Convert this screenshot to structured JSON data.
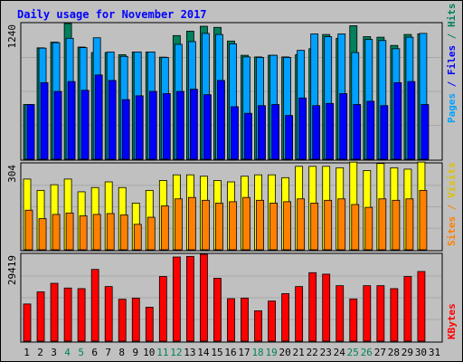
{
  "chart_data": {
    "title": "Daily usage for November 2017",
    "type": "bar",
    "days": [
      "1",
      "2",
      "3",
      "4",
      "5",
      "6",
      "7",
      "8",
      "9",
      "10",
      "11",
      "12",
      "13",
      "14",
      "15",
      "16",
      "17",
      "18",
      "19",
      "20",
      "21",
      "22",
      "23",
      "24",
      "25",
      "26",
      "27",
      "28",
      "29",
      "30",
      "31"
    ],
    "weekend_days": [
      "4",
      "5",
      "11",
      "12",
      "18",
      "19",
      "25",
      "26"
    ],
    "panels": [
      {
        "id": "hits",
        "max_label": "1240",
        "ymax": 1240,
        "series": [
          {
            "name": "Hits",
            "color": "#00805c",
            "values": [
              500,
              1018,
              1070,
              1240,
              1025,
              975,
              975,
              955,
              980,
              980,
              933,
              1130,
              1170,
              1215,
              1205,
              1080,
              950,
              935,
              950,
              935,
              955,
              1010,
              1140,
              1105,
              1220,
              1120,
              1115,
              1040,
              1140,
              1145,
              0
            ]
          },
          {
            "name": "Files",
            "color": "#00a0ff",
            "values": [
              500,
              1015,
              1065,
              1105,
              1020,
              1110,
              980,
              940,
              980,
              980,
              930,
              1050,
              1075,
              1150,
              1140,
              1055,
              935,
              930,
              950,
              930,
              995,
              1145,
              1120,
              1145,
              975,
              1095,
              1085,
              1010,
              1115,
              1150,
              0
            ]
          },
          {
            "name": "Pages",
            "color": "#0000ff",
            "values": [
              500,
              700,
              620,
              710,
              630,
              770,
              720,
              545,
              580,
              620,
              600,
              620,
              640,
              590,
              720,
              480,
              420,
              490,
              500,
              400,
              560,
              490,
              510,
              600,
              500,
              530,
              490,
              700,
              710,
              500,
              0
            ]
          }
        ]
      },
      {
        "id": "visits",
        "max_label": "304",
        "ymax": 304,
        "series": [
          {
            "name": "Visits",
            "color": "#ffff00",
            "values": [
              250,
              210,
              230,
              250,
              205,
              220,
              240,
              220,
              165,
              210,
              245,
              265,
              265,
              260,
              245,
              240,
              260,
              265,
              265,
              255,
              295,
              295,
              295,
              290,
              310,
              280,
              305,
              290,
              285,
              310,
              0
            ]
          },
          {
            "name": "Sites",
            "color": "#ff8000",
            "values": [
              140,
              110,
              125,
              130,
              120,
              125,
              128,
              123,
              90,
              115,
              155,
              180,
              185,
              175,
              165,
              170,
              185,
              175,
              165,
              170,
              180,
              165,
              175,
              180,
              160,
              150,
              180,
              175,
              180,
              210,
              0
            ]
          }
        ]
      },
      {
        "id": "kbytes",
        "max_label": "29419",
        "ymax": 29419,
        "series": [
          {
            "name": "KBytes",
            "color": "#ff0000",
            "values": [
              12600,
              16700,
              19600,
              18000,
              17800,
              24300,
              18500,
              14200,
              14600,
              11500,
              21900,
              28500,
              28700,
              29419,
              21300,
              14400,
              14600,
              10300,
              13600,
              16100,
              18500,
              23200,
              22700,
              18800,
              14300,
              18800,
              18800,
              17800,
              21900,
              23600,
              0
            ]
          }
        ]
      }
    ],
    "right_labels": {
      "hits": [
        {
          "text": "Pages",
          "color": "#00a0ff"
        },
        {
          "text": " / ",
          "color": "#0000ff"
        },
        {
          "text": "Files",
          "color": "#0000ff"
        },
        {
          "text": " / ",
          "color": "#00805c"
        },
        {
          "text": "Hits",
          "color": "#00805c"
        }
      ],
      "visits": [
        {
          "text": "Sites",
          "color": "#ff8000"
        },
        {
          "text": " / ",
          "color": "#ff8000"
        },
        {
          "text": "Visits",
          "color": "#e0c000"
        }
      ],
      "kbytes": [
        {
          "text": "KBytes",
          "color": "#ff0000"
        }
      ]
    },
    "colors": {
      "background": "#c0c0c0",
      "title": "#0000ff",
      "weekday_label": "#000000",
      "weekend_label": "#00805c"
    }
  }
}
